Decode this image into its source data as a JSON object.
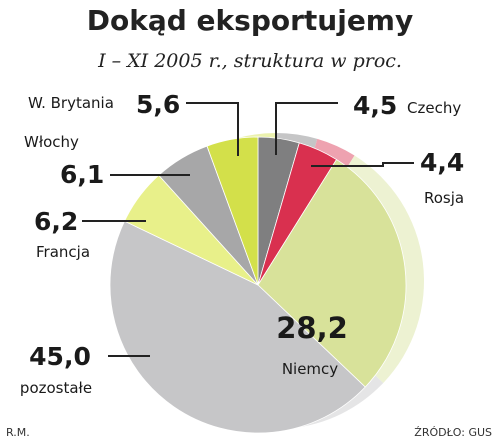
{
  "chart_data": {
    "type": "pie",
    "title": "Dokąd eksportujemy",
    "subtitle": "I – XI 2005 r., struktura w proc.",
    "slices": [
      {
        "label": "Czechy",
        "value_label": "4,5",
        "value": 4.5,
        "color": "#7f7f80"
      },
      {
        "label": "Rosja",
        "value_label": "4,4",
        "value": 4.4,
        "color": "#d9304f"
      },
      {
        "label": "Niemcy",
        "value_label": "28,2",
        "value": 28.2,
        "color": "#d8e29a"
      },
      {
        "label": "pozostałe",
        "value_label": "45,0",
        "value": 45.0,
        "color": "#c6c6c8"
      },
      {
        "label": "Francja",
        "value_label": "6,2",
        "value": 6.2,
        "color": "#e8f08a"
      },
      {
        "label": "Włochy",
        "value_label": "6,1",
        "value": 6.1,
        "color": "#a7a7a8"
      },
      {
        "label": "W. Brytania",
        "value_label": "5,6",
        "value": 5.6,
        "color": "#d3e04a"
      }
    ]
  },
  "footer": {
    "author": "R.M.",
    "source": "ŹRÓDŁO: GUS"
  }
}
